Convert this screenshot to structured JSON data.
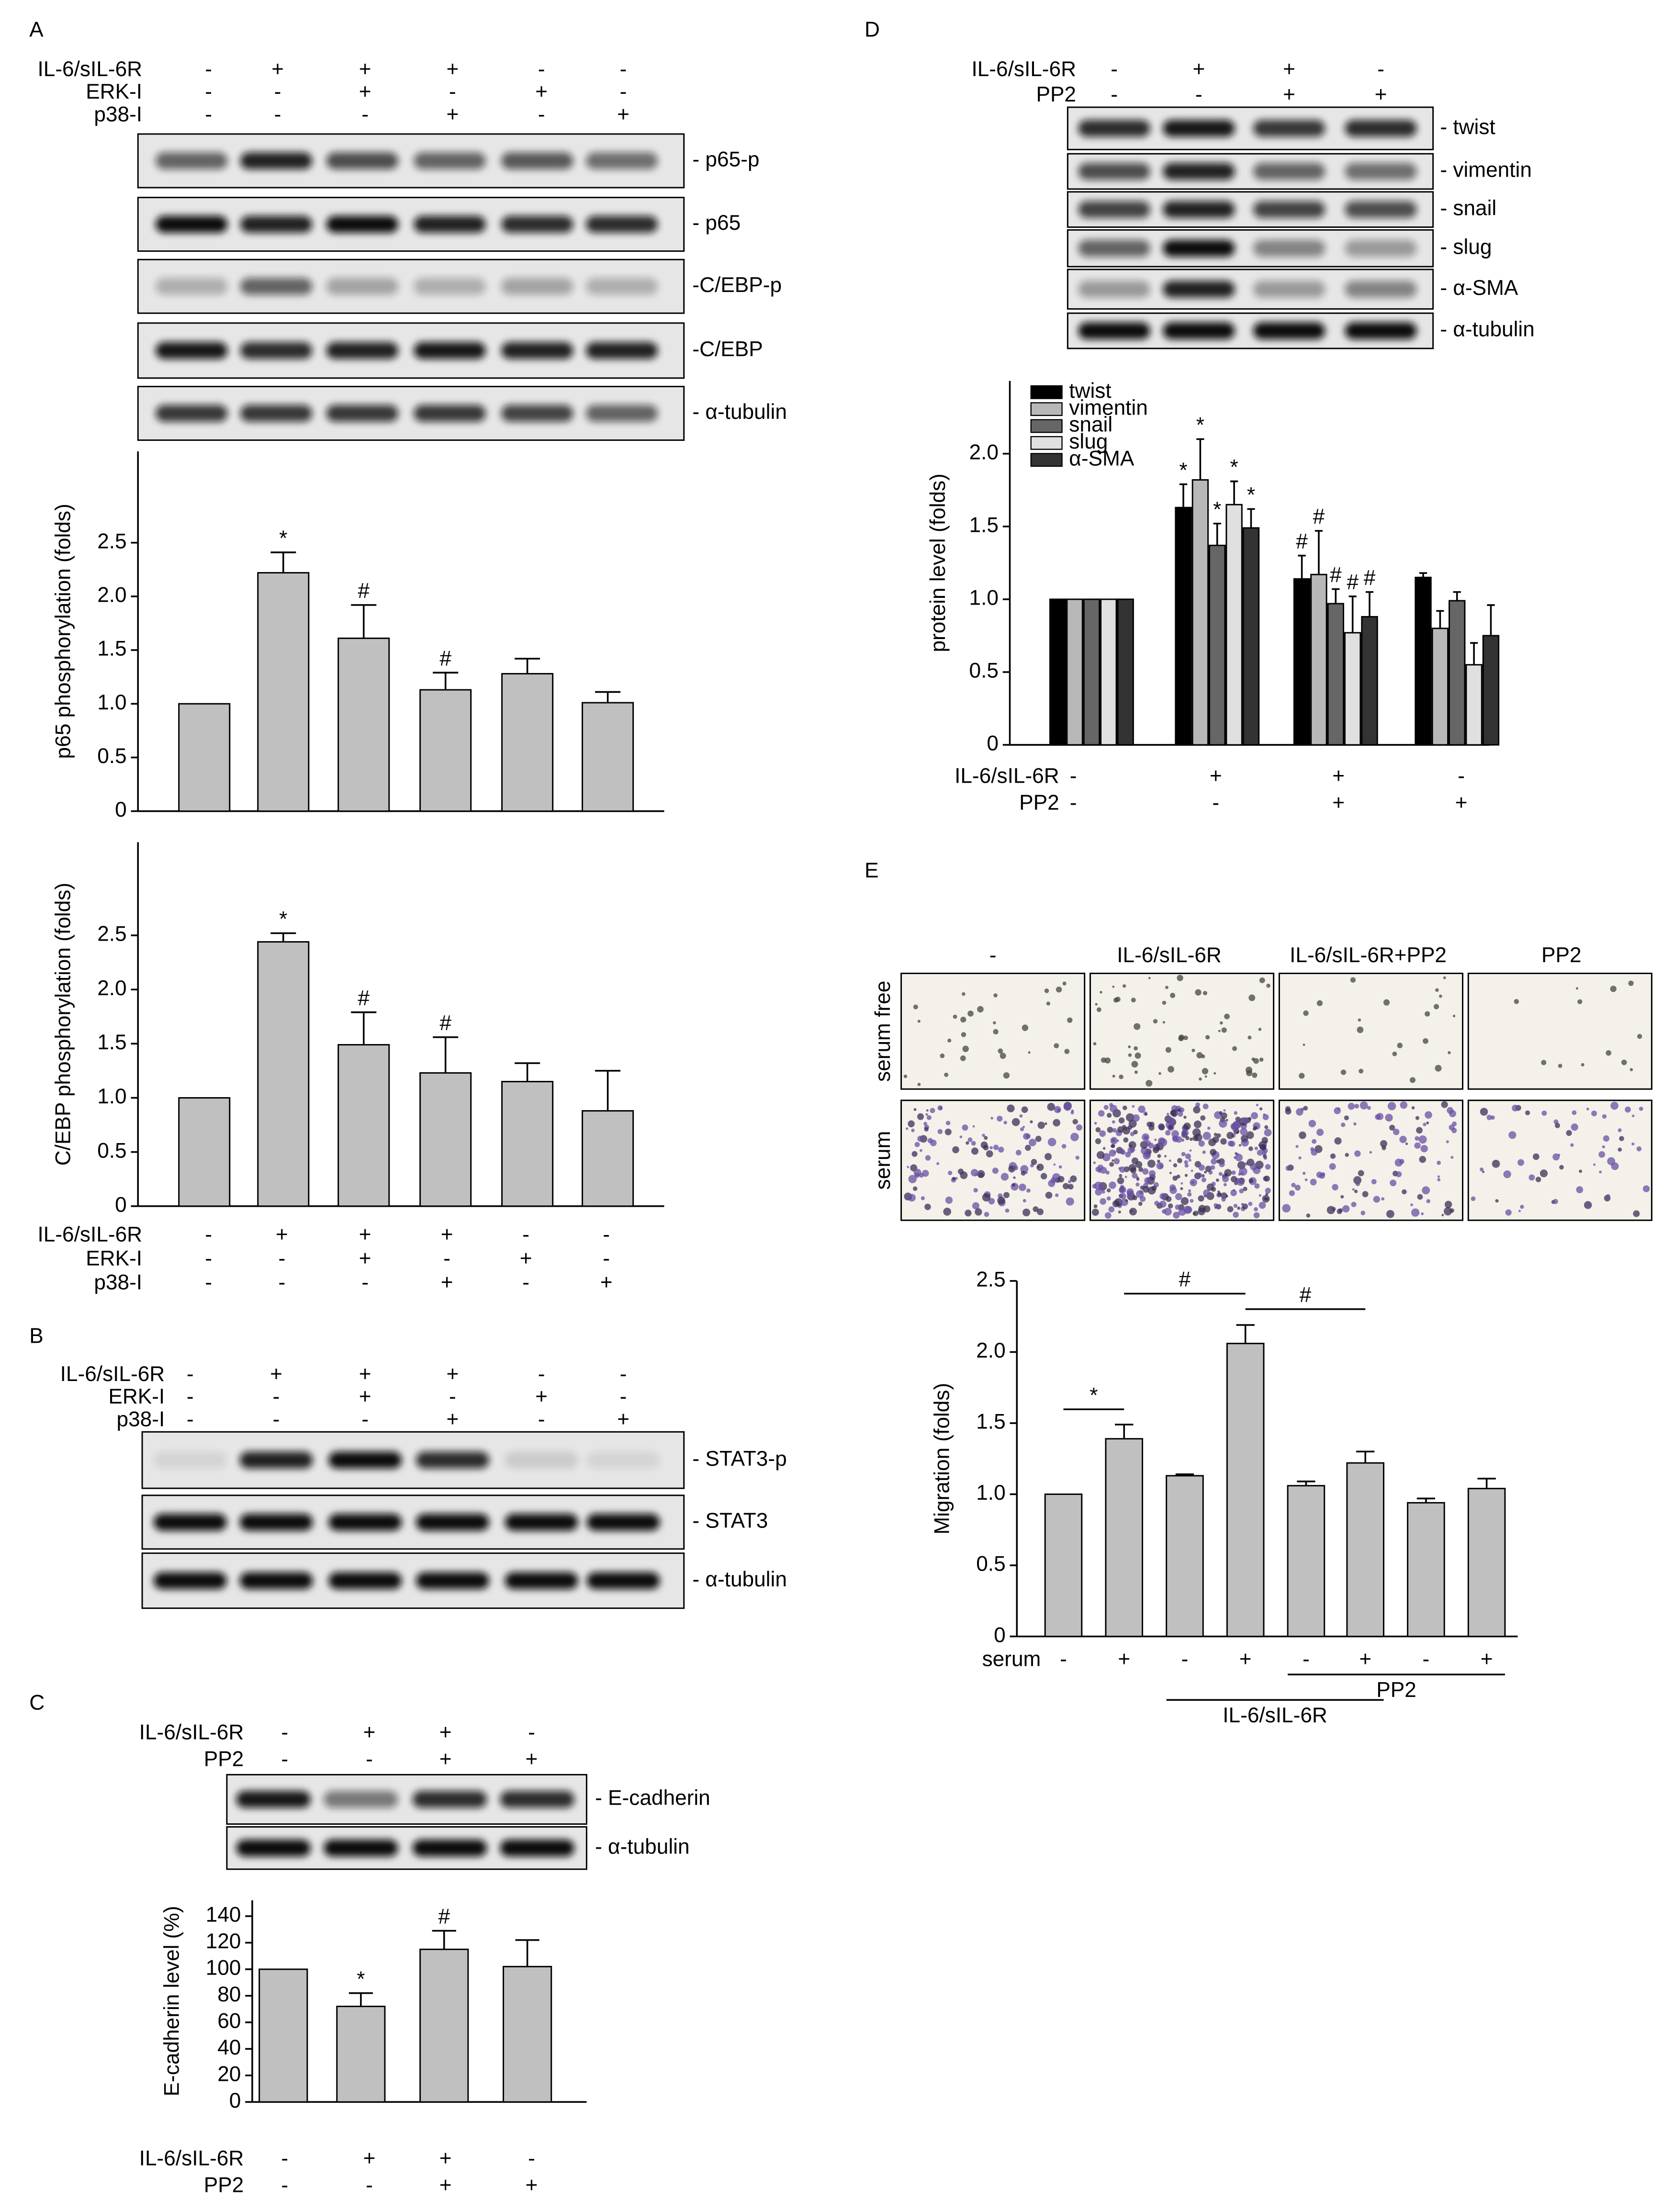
{
  "panel_labels": [
    "A",
    "B",
    "C",
    "D",
    "E"
  ],
  "blots": [
    {
      "conditions": [
        {
          "name": "IL-6/sIL-6R",
          "signs": [
            "-",
            "+",
            "+",
            "+",
            "-",
            "-"
          ]
        },
        {
          "name": "ERK-I",
          "signs": [
            "-",
            "-",
            "+",
            "-",
            "+",
            "-"
          ]
        },
        {
          "name": "p38-I",
          "signs": [
            "-",
            "-",
            "-",
            "+",
            "-",
            "+"
          ]
        }
      ],
      "bands": [
        "- p65-p",
        "- p65",
        "-C/EBP-p",
        "-C/EBP",
        "- α-tubulin"
      ]
    },
    {
      "conditions": [
        {
          "name": "IL-6/sIL-6R",
          "signs": [
            "-",
            "+",
            "+",
            "+",
            "-",
            "-"
          ]
        },
        {
          "name": "ERK-I",
          "signs": [
            "-",
            "-",
            "+",
            "-",
            "+",
            "-"
          ]
        },
        {
          "name": "p38-I",
          "signs": [
            "-",
            "-",
            "-",
            "+",
            "-",
            "+"
          ]
        }
      ],
      "bands": [
        "- STAT3-p",
        "- STAT3",
        "- α-tubulin"
      ]
    },
    {
      "conditions": [
        {
          "name": "IL-6/sIL-6R",
          "signs": [
            "-",
            "+",
            "+",
            "-"
          ]
        },
        {
          "name": "PP2",
          "signs": [
            "-",
            "-",
            "+",
            "+"
          ]
        }
      ],
      "bands": [
        "- E-cadherin",
        "- α-tubulin"
      ]
    },
    {
      "conditions": [
        {
          "name": "IL-6/sIL-6R",
          "signs": [
            "-",
            "+",
            "+",
            "-"
          ]
        },
        {
          "name": "PP2",
          "signs": [
            "-",
            "-",
            "+",
            "+"
          ]
        }
      ],
      "bands": [
        "- twist",
        "- vimentin",
        "- snail",
        "- slug",
        "- α-SMA",
        "- α-tubulin"
      ]
    }
  ],
  "micrographs": {
    "columns": [
      "-",
      "IL-6/sIL-6R",
      "IL-6/sIL-6R+PP2",
      "PP2"
    ],
    "rows": [
      "serum free",
      "serum"
    ]
  },
  "chart_data": [
    {
      "type": "bar",
      "y_label": "p65 phosphorylation (folds)",
      "color": "#c0c0c0",
      "ylim": [
        0,
        3.35
      ],
      "yticks": [
        0,
        0.5,
        {
          "value": 1,
          "label": "1.0"
        },
        1.5,
        {
          "value": 2,
          "label": "2.0"
        },
        2.5
      ],
      "values": [
        1.0,
        2.22,
        1.61,
        1.13,
        1.28,
        1.01
      ],
      "errors": [
        null,
        0.19,
        0.31,
        0.16,
        0.14,
        0.1
      ],
      "annotations": [
        null,
        "*",
        "#",
        "#",
        null,
        null
      ]
    },
    {
      "type": "bar",
      "y_label": "C/EBP phosphorylation (folds)",
      "color": "#c0c0c0",
      "ylim": [
        0,
        3.36
      ],
      "yticks": [
        0,
        0.5,
        {
          "value": 1,
          "label": "1.0"
        },
        1.5,
        {
          "value": 2,
          "label": "2.0"
        },
        2.5
      ],
      "values": [
        1.0,
        2.44,
        1.49,
        1.23,
        1.15,
        0.88
      ],
      "errors": [
        null,
        0.08,
        0.3,
        0.33,
        0.17,
        0.37
      ],
      "annotations": [
        null,
        "*",
        "#",
        "#",
        null,
        null
      ],
      "conditions": [
        {
          "name": "IL-6/sIL-6R",
          "signs": [
            "-",
            "+",
            "+",
            "+",
            "-",
            "-"
          ]
        },
        {
          "name": "ERK-I",
          "signs": [
            "-",
            "-",
            "+",
            "-",
            "+",
            "-"
          ]
        },
        {
          "name": "p38-I",
          "signs": [
            "-",
            "-",
            "-",
            "+",
            "-",
            "+"
          ]
        }
      ]
    },
    {
      "type": "bar",
      "y_label": "E-cadherin level (%)",
      "color": "#c0c0c0",
      "ylim": [
        0,
        152
      ],
      "yticks": [
        0,
        20,
        40,
        60,
        80,
        100,
        120,
        140
      ],
      "values": [
        100,
        72,
        115,
        102
      ],
      "errors": [
        null,
        10,
        14,
        20
      ],
      "annotations": [
        null,
        "*",
        "#",
        null
      ],
      "conditions": [
        {
          "name": "IL-6/sIL-6R",
          "signs": [
            "-",
            "+",
            "+",
            "-"
          ]
        },
        {
          "name": "PP2",
          "signs": [
            "-",
            "-",
            "+",
            "+"
          ]
        }
      ]
    },
    {
      "type": "grouped_bar",
      "y_label": "protein level (folds)",
      "ylim": [
        0,
        2.5
      ],
      "yticks": [
        0,
        0.5,
        {
          "value": 1,
          "label": "1.0"
        },
        1.5,
        {
          "value": 2,
          "label": "2.0"
        }
      ],
      "series": [
        {
          "name": "twist",
          "color": "#000000",
          "values": [
            1.0,
            1.63,
            1.14,
            1.15
          ],
          "errors": [
            null,
            0.16,
            0.16,
            0.03
          ],
          "annotations": [
            null,
            "*",
            "#",
            null
          ]
        },
        {
          "name": "vimentin",
          "color": "#b8b8b8",
          "values": [
            1.0,
            1.82,
            1.17,
            0.8
          ],
          "errors": [
            null,
            0.28,
            0.3,
            0.12
          ],
          "annotations": [
            null,
            "*",
            "#",
            null
          ]
        },
        {
          "name": "snail",
          "color": "#666666",
          "values": [
            1.0,
            1.37,
            0.97,
            0.99
          ],
          "errors": [
            null,
            0.15,
            0.1,
            0.06
          ],
          "annotations": [
            null,
            "*",
            "#",
            null
          ]
        },
        {
          "name": "slug",
          "color": "#e0e0e0",
          "values": [
            1.0,
            1.65,
            0.77,
            0.55
          ],
          "errors": [
            null,
            0.16,
            0.25,
            0.15
          ],
          "annotations": [
            null,
            "*",
            "#",
            null
          ]
        },
        {
          "name": "α-SMA",
          "color": "#333333",
          "values": [
            1.0,
            1.49,
            0.88,
            0.75
          ],
          "errors": [
            null,
            0.13,
            0.17,
            0.21
          ],
          "annotations": [
            null,
            "*",
            "#",
            null
          ]
        }
      ],
      "conditions": [
        {
          "name": "IL-6/sIL-6R",
          "signs": [
            "-",
            "+",
            "+",
            "-"
          ]
        },
        {
          "name": "PP2",
          "signs": [
            "-",
            "-",
            "+",
            "+"
          ]
        }
      ]
    },
    {
      "type": "bar",
      "y_label": "Migration (folds)",
      "color": "#c0c0c0",
      "ylim": [
        0,
        2.5
      ],
      "yticks": [
        0,
        0.5,
        {
          "value": 1,
          "label": "1.0"
        },
        1.5,
        {
          "value": 2,
          "label": "2.0"
        },
        2.5
      ],
      "values": [
        1.0,
        1.39,
        1.13,
        2.06,
        1.06,
        1.22,
        0.94,
        1.04
      ],
      "errors": [
        null,
        0.1,
        0.01,
        0.13,
        0.03,
        0.08,
        0.03,
        0.07
      ],
      "conditions": [
        {
          "name": "serum",
          "signs": [
            "-",
            "+",
            "-",
            "+",
            "-",
            "+",
            "-",
            "+"
          ]
        }
      ],
      "comparisons": [
        {
          "label": "*",
          "from": 0,
          "to": 1
        },
        {
          "label": "#",
          "from": 1,
          "to": 3
        },
        {
          "label": "#",
          "from": 3,
          "to": 5
        }
      ],
      "groups": [
        {
          "label": "PP2",
          "from": 4,
          "to": 7
        },
        {
          "label": "IL-6/sIL-6R",
          "from": 2,
          "to": 5
        }
      ]
    }
  ]
}
